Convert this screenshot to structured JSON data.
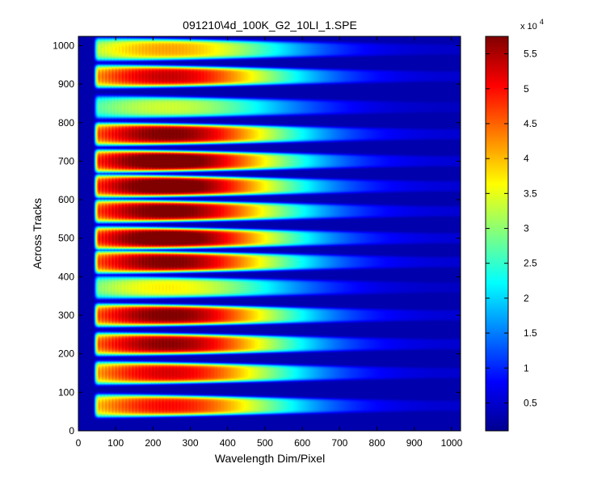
{
  "chart_data": {
    "type": "heatmap",
    "title": "091210\\4d_100K_G2_10LI_1.SPE",
    "xlabel": "Wavelength Dim/Pixel",
    "ylabel": "Across Tracks",
    "xlim": [
      0,
      1024
    ],
    "ylim": [
      0,
      1024
    ],
    "x_ticks": [
      0,
      100,
      200,
      300,
      400,
      500,
      600,
      700,
      800,
      900,
      1000
    ],
    "y_ticks": [
      0,
      100,
      200,
      300,
      400,
      500,
      600,
      700,
      800,
      900,
      1000
    ],
    "colorbar": {
      "colormap": "jet",
      "range": [
        1000,
        57500
      ],
      "ticks": [
        0.5,
        1,
        1.5,
        2,
        2.5,
        3,
        3.5,
        4,
        4.5,
        5,
        5.5
      ],
      "tick_labels": [
        "0.5",
        "1",
        "1.5",
        "2",
        "2.5",
        "3",
        "3.5",
        "4",
        "4.5",
        "5",
        "5.5"
      ],
      "multiplier_base": "x 10",
      "multiplier_exp": "4",
      "jet_stops": [
        "#00008f",
        "#0000ff",
        "#00ffff",
        "#ffff00",
        "#ff0000",
        "#800000"
      ]
    },
    "signal_onset_x": 40,
    "tracks": [
      {
        "center": 65,
        "peak": 42000
      },
      {
        "center": 150,
        "peak": 44000
      },
      {
        "center": 225,
        "peak": 48000
      },
      {
        "center": 300,
        "peak": 49000
      },
      {
        "center": 372,
        "peak": 30000
      },
      {
        "center": 438,
        "peak": 49000
      },
      {
        "center": 500,
        "peak": 52000
      },
      {
        "center": 570,
        "peak": 50000
      },
      {
        "center": 635,
        "peak": 52000
      },
      {
        "center": 700,
        "peak": 52000
      },
      {
        "center": 770,
        "peak": 49000
      },
      {
        "center": 840,
        "peak": 27000
      },
      {
        "center": 920,
        "peak": 45000
      },
      {
        "center": 990,
        "peak": 34000
      }
    ]
  }
}
